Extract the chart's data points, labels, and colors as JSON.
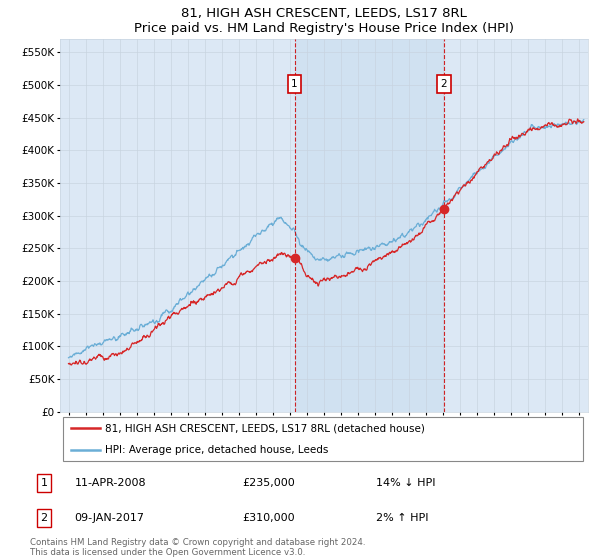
{
  "title": "81, HIGH ASH CRESCENT, LEEDS, LS17 8RL",
  "subtitle": "Price paid vs. HM Land Registry's House Price Index (HPI)",
  "ylabel_ticks": [
    "£0",
    "£50K",
    "£100K",
    "£150K",
    "£200K",
    "£250K",
    "£300K",
    "£350K",
    "£400K",
    "£450K",
    "£500K",
    "£550K"
  ],
  "ylim": [
    0,
    570000
  ],
  "xlim_start": 1994.5,
  "xlim_end": 2025.5,
  "hpi_color": "#6baed6",
  "property_color": "#d62728",
  "marker1_x": 2008.27,
  "marker1_y": 235000,
  "marker1_label": "1",
  "marker2_x": 2017.03,
  "marker2_y": 310000,
  "marker2_label": "2",
  "legend_line1": "81, HIGH ASH CRESCENT, LEEDS, LS17 8RL (detached house)",
  "legend_line2": "HPI: Average price, detached house, Leeds",
  "footer": "Contains HM Land Registry data © Crown copyright and database right 2024.\nThis data is licensed under the Open Government Licence v3.0.",
  "grid_color": "#c8d4e0",
  "bg_color": "#dce8f5",
  "marker_box_color": "#cc0000"
}
